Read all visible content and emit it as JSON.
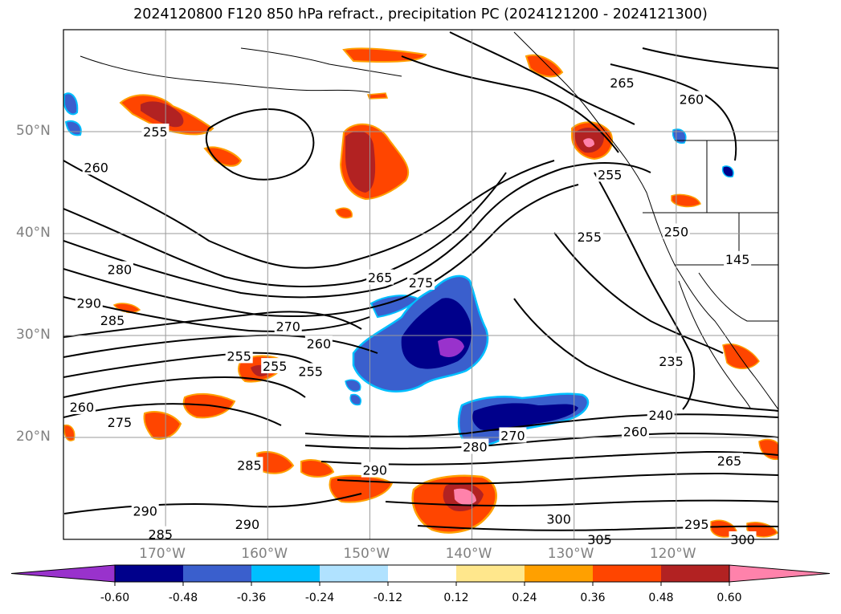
{
  "title": "2024120800 F120 850 hPa refract., precipitation PC (2024121200 - 2024121300)",
  "axes": {
    "lat_labels": [
      "50°N",
      "40°N",
      "30°N",
      "20°N"
    ],
    "lon_labels": [
      "170°W",
      "160°W",
      "150°W",
      "140°W",
      "130°W",
      "120°W"
    ]
  },
  "contour_labels": [
    {
      "text": "265",
      "lat": 54.8,
      "lon": -125.3
    },
    {
      "text": "260",
      "lat": 53.2,
      "lon": -118.5
    },
    {
      "text": "255",
      "lat": 50.0,
      "lon": -171.0
    },
    {
      "text": "260",
      "lat": 46.5,
      "lon": -176.8
    },
    {
      "text": "255",
      "lat": 45.8,
      "lon": -126.5
    },
    {
      "text": "255",
      "lat": 39.7,
      "lon": -128.5
    },
    {
      "text": "250",
      "lat": 40.2,
      "lon": -120.0
    },
    {
      "text": "145",
      "lat": 37.5,
      "lon": -114.0
    },
    {
      "text": "280",
      "lat": 36.5,
      "lon": -174.5
    },
    {
      "text": "265",
      "lat": 35.7,
      "lon": -149.0
    },
    {
      "text": "275",
      "lat": 35.2,
      "lon": -145.0
    },
    {
      "text": "290",
      "lat": 33.2,
      "lon": -177.5
    },
    {
      "text": "285",
      "lat": 31.5,
      "lon": -175.2
    },
    {
      "text": "270",
      "lat": 30.9,
      "lon": -158.0
    },
    {
      "text": "260",
      "lat": 29.2,
      "lon": -155.0
    },
    {
      "text": "255",
      "lat": 28.0,
      "lon": -162.8
    },
    {
      "text": "255",
      "lat": 27.0,
      "lon": -159.3
    },
    {
      "text": "255",
      "lat": 26.5,
      "lon": -155.8
    },
    {
      "text": "235",
      "lat": 27.5,
      "lon": -120.5
    },
    {
      "text": "260",
      "lat": 23.0,
      "lon": -178.2
    },
    {
      "text": "275",
      "lat": 21.5,
      "lon": -174.5
    },
    {
      "text": "240",
      "lat": 22.2,
      "lon": -121.5
    },
    {
      "text": "260",
      "lat": 20.6,
      "lon": -124.0
    },
    {
      "text": "270",
      "lat": 20.2,
      "lon": -136.0
    },
    {
      "text": "280",
      "lat": 19.1,
      "lon": -139.7
    },
    {
      "text": "265",
      "lat": 17.7,
      "lon": -114.8
    },
    {
      "text": "285",
      "lat": 17.3,
      "lon": -161.8
    },
    {
      "text": "290",
      "lat": 16.8,
      "lon": -149.5
    },
    {
      "text": "290",
      "lat": 12.8,
      "lon": -172.0
    },
    {
      "text": "290",
      "lat": 11.5,
      "lon": -162.0
    },
    {
      "text": "300",
      "lat": 12.0,
      "lon": -131.5
    },
    {
      "text": "295",
      "lat": 11.5,
      "lon": -118.0
    },
    {
      "text": "285",
      "lat": 10.5,
      "lon": -170.5
    },
    {
      "text": "305",
      "lat": 10.0,
      "lon": -127.5
    },
    {
      "text": "300",
      "lat": 10.0,
      "lon": -113.5
    }
  ],
  "colorbar": {
    "ticks": [
      "-0.60",
      "-0.48",
      "-0.36",
      "-0.24",
      "-0.12",
      "0.12",
      "0.24",
      "0.36",
      "0.48",
      "0.60"
    ],
    "colors": [
      "#9932cc",
      "#00008b",
      "#3a5fcd",
      "#00bfff",
      "#b0e2ff",
      "#ffffff",
      "#ffe78c",
      "#ffa000",
      "#ff4500",
      "#b22222",
      "#ff82ab"
    ]
  }
}
